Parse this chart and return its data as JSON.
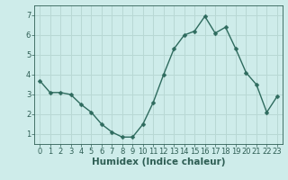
{
  "x": [
    0,
    1,
    2,
    3,
    4,
    5,
    6,
    7,
    8,
    9,
    10,
    11,
    12,
    13,
    14,
    15,
    16,
    17,
    18,
    19,
    20,
    21,
    22,
    23
  ],
  "y": [
    3.7,
    3.1,
    3.1,
    3.0,
    2.5,
    2.1,
    1.5,
    1.1,
    0.85,
    0.85,
    1.5,
    2.6,
    4.0,
    5.3,
    6.0,
    6.2,
    6.95,
    6.1,
    6.4,
    5.3,
    4.1,
    3.5,
    2.1,
    2.9
  ],
  "line_color": "#2e6b5e",
  "marker_color": "#2e6b5e",
  "bg_color": "#ceecea",
  "grid_color": "#b8d8d4",
  "xlabel": "Humidex (Indice chaleur)",
  "xlim": [
    -0.5,
    23.5
  ],
  "ylim": [
    0.5,
    7.5
  ],
  "yticks": [
    1,
    2,
    3,
    4,
    5,
    6,
    7
  ],
  "xticks": [
    0,
    1,
    2,
    3,
    4,
    5,
    6,
    7,
    8,
    9,
    10,
    11,
    12,
    13,
    14,
    15,
    16,
    17,
    18,
    19,
    20,
    21,
    22,
    23
  ],
  "marker_size": 2.5,
  "line_width": 1.0,
  "font_color": "#2e5e54",
  "tick_fontsize": 6.0,
  "xlabel_fontsize": 7.5
}
